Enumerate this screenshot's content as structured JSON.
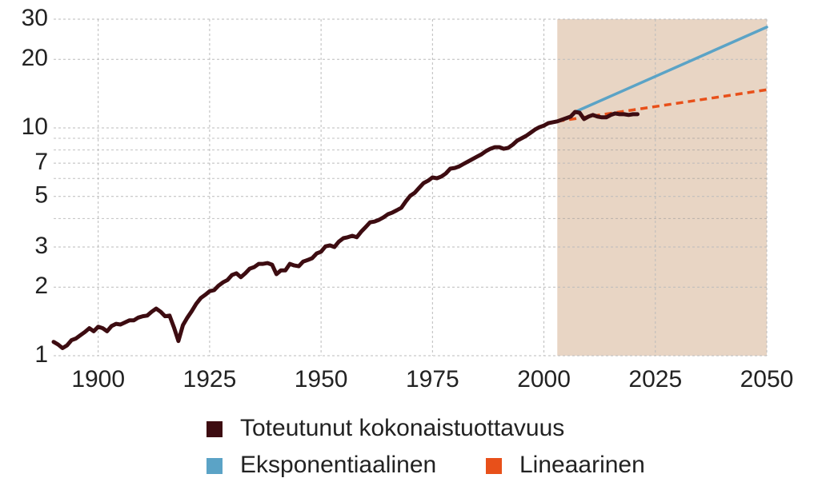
{
  "chart_data": {
    "type": "line",
    "xlim": [
      1890,
      2050
    ],
    "xticks": [
      1900,
      1925,
      1950,
      1975,
      2000,
      2025,
      2050
    ],
    "ylim": [
      1,
      30
    ],
    "yticks": [
      1,
      2,
      3,
      5,
      7,
      10,
      20,
      30
    ],
    "minor_yticks": [
      4,
      6,
      8,
      9
    ],
    "yscale": "log",
    "grid": true,
    "shaded_region": {
      "x": [
        2003,
        2050
      ],
      "color": "#e8d5c4"
    },
    "legend": "bottom",
    "series": [
      {
        "name": "Toteutunut kokonaistuottavuus",
        "color": "#3d0c11",
        "dashed": false,
        "x": [
          1890,
          1891,
          1892,
          1893,
          1894,
          1895,
          1896,
          1897,
          1898,
          1899,
          1900,
          1901,
          1902,
          1903,
          1904,
          1905,
          1906,
          1907,
          1908,
          1909,
          1910,
          1911,
          1912,
          1913,
          1914,
          1915,
          1916,
          1917,
          1918,
          1919,
          1920,
          1921,
          1922,
          1923,
          1924,
          1925,
          1926,
          1927,
          1928,
          1929,
          1930,
          1931,
          1932,
          1933,
          1934,
          1935,
          1936,
          1937,
          1938,
          1939,
          1940,
          1941,
          1942,
          1943,
          1944,
          1945,
          1946,
          1947,
          1948,
          1949,
          1950,
          1951,
          1952,
          1953,
          1954,
          1955,
          1956,
          1957,
          1958,
          1959,
          1960,
          1961,
          1962,
          1963,
          1964,
          1965,
          1966,
          1967,
          1968,
          1969,
          1970,
          1971,
          1972,
          1973,
          1974,
          1975,
          1976,
          1977,
          1978,
          1979,
          1980,
          1981,
          1982,
          1983,
          1984,
          1985,
          1986,
          1987,
          1988,
          1989,
          1990,
          1991,
          1992,
          1993,
          1994,
          1995,
          1996,
          1997,
          1998,
          1999,
          2000,
          2001,
          2002,
          2003,
          2004,
          2005,
          2006,
          2007,
          2008,
          2009,
          2010,
          2011,
          2012,
          2013,
          2014,
          2015,
          2016,
          2017,
          2018,
          2019,
          2020,
          2021
        ],
        "values": [
          1.15,
          1.12,
          1.08,
          1.11,
          1.17,
          1.19,
          1.23,
          1.27,
          1.32,
          1.28,
          1.34,
          1.32,
          1.28,
          1.35,
          1.38,
          1.37,
          1.4,
          1.43,
          1.43,
          1.47,
          1.49,
          1.5,
          1.56,
          1.61,
          1.56,
          1.49,
          1.5,
          1.33,
          1.16,
          1.36,
          1.47,
          1.57,
          1.69,
          1.79,
          1.85,
          1.92,
          1.94,
          2.03,
          2.1,
          2.15,
          2.26,
          2.3,
          2.21,
          2.3,
          2.41,
          2.45,
          2.53,
          2.53,
          2.55,
          2.51,
          2.28,
          2.37,
          2.37,
          2.53,
          2.49,
          2.47,
          2.59,
          2.63,
          2.68,
          2.81,
          2.86,
          3.02,
          3.05,
          3.0,
          3.17,
          3.28,
          3.31,
          3.36,
          3.31,
          3.5,
          3.67,
          3.85,
          3.88,
          3.95,
          4.05,
          4.18,
          4.25,
          4.35,
          4.46,
          4.75,
          5.03,
          5.19,
          5.45,
          5.72,
          5.86,
          6.06,
          6.01,
          6.12,
          6.31,
          6.62,
          6.67,
          6.78,
          6.95,
          7.12,
          7.3,
          7.48,
          7.66,
          7.91,
          8.1,
          8.23,
          8.23,
          8.1,
          8.17,
          8.44,
          8.79,
          9.0,
          9.22,
          9.52,
          9.83,
          10.07,
          10.24,
          10.49,
          10.59,
          10.68,
          10.86,
          11.03,
          11.21,
          11.75,
          11.66,
          10.94,
          11.21,
          11.4,
          11.21,
          11.12,
          11.12,
          11.4,
          11.57,
          11.48,
          11.48,
          11.4,
          11.48,
          11.48
        ]
      },
      {
        "name": "Eksponentiaalinen",
        "color": "#5ba3c6",
        "dashed": false,
        "x": [
          2007,
          2050
        ],
        "values": [
          11.75,
          27.7
        ]
      },
      {
        "name": "Lineaarinen",
        "color": "#e8501a",
        "dashed": true,
        "x": [
          2003,
          2050
        ],
        "values": [
          10.68,
          14.7
        ]
      }
    ]
  }
}
